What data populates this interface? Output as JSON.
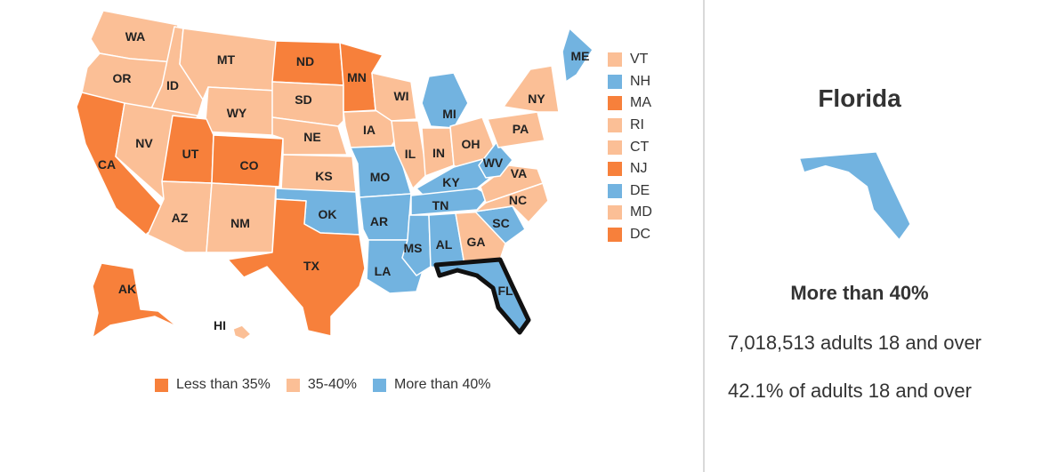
{
  "colors": {
    "less_than_35": "#f7803b",
    "range_35_40": "#fbbf96",
    "more_than_40": "#72b3e0"
  },
  "map": {
    "states": [
      {
        "abbr": "WA",
        "category": "range_35_40"
      },
      {
        "abbr": "OR",
        "category": "range_35_40"
      },
      {
        "abbr": "CA",
        "category": "less_than_35"
      },
      {
        "abbr": "ID",
        "category": "range_35_40"
      },
      {
        "abbr": "NV",
        "category": "range_35_40"
      },
      {
        "abbr": "MT",
        "category": "range_35_40"
      },
      {
        "abbr": "WY",
        "category": "range_35_40"
      },
      {
        "abbr": "UT",
        "category": "less_than_35"
      },
      {
        "abbr": "CO",
        "category": "less_than_35"
      },
      {
        "abbr": "AZ",
        "category": "range_35_40"
      },
      {
        "abbr": "NM",
        "category": "range_35_40"
      },
      {
        "abbr": "ND",
        "category": "less_than_35"
      },
      {
        "abbr": "SD",
        "category": "range_35_40"
      },
      {
        "abbr": "NE",
        "category": "range_35_40"
      },
      {
        "abbr": "KS",
        "category": "range_35_40"
      },
      {
        "abbr": "OK",
        "category": "more_than_40"
      },
      {
        "abbr": "TX",
        "category": "less_than_35"
      },
      {
        "abbr": "MN",
        "category": "less_than_35"
      },
      {
        "abbr": "IA",
        "category": "range_35_40"
      },
      {
        "abbr": "MO",
        "category": "more_than_40"
      },
      {
        "abbr": "AR",
        "category": "more_than_40"
      },
      {
        "abbr": "LA",
        "category": "more_than_40"
      },
      {
        "abbr": "WI",
        "category": "range_35_40"
      },
      {
        "abbr": "IL",
        "category": "range_35_40"
      },
      {
        "abbr": "MI",
        "category": "more_than_40"
      },
      {
        "abbr": "IN",
        "category": "range_35_40"
      },
      {
        "abbr": "OH",
        "category": "range_35_40"
      },
      {
        "abbr": "KY",
        "category": "more_than_40"
      },
      {
        "abbr": "TN",
        "category": "more_than_40"
      },
      {
        "abbr": "MS",
        "category": "more_than_40"
      },
      {
        "abbr": "AL",
        "category": "more_than_40"
      },
      {
        "abbr": "GA",
        "category": "range_35_40"
      },
      {
        "abbr": "FL",
        "category": "more_than_40"
      },
      {
        "abbr": "SC",
        "category": "more_than_40"
      },
      {
        "abbr": "NC",
        "category": "range_35_40"
      },
      {
        "abbr": "VA",
        "category": "range_35_40"
      },
      {
        "abbr": "WV",
        "category": "more_than_40"
      },
      {
        "abbr": "PA",
        "category": "range_35_40"
      },
      {
        "abbr": "NY",
        "category": "range_35_40"
      },
      {
        "abbr": "ME",
        "category": "more_than_40"
      },
      {
        "abbr": "AK",
        "category": "less_than_35"
      },
      {
        "abbr": "HI",
        "category": "range_35_40"
      }
    ],
    "selected_state": "FL"
  },
  "small_states": [
    {
      "abbr": "VT",
      "category": "range_35_40"
    },
    {
      "abbr": "NH",
      "category": "more_than_40"
    },
    {
      "abbr": "MA",
      "category": "less_than_35"
    },
    {
      "abbr": "RI",
      "category": "range_35_40"
    },
    {
      "abbr": "CT",
      "category": "range_35_40"
    },
    {
      "abbr": "NJ",
      "category": "less_than_35"
    },
    {
      "abbr": "DE",
      "category": "more_than_40"
    },
    {
      "abbr": "MD",
      "category": "range_35_40"
    },
    {
      "abbr": "DC",
      "category": "less_than_35"
    }
  ],
  "legend": [
    {
      "label": "Less than 35%",
      "category": "less_than_35"
    },
    {
      "label": "35-40%",
      "category": "range_35_40"
    },
    {
      "label": "More than 40%",
      "category": "more_than_40"
    }
  ],
  "detail": {
    "title": "Florida",
    "category_label": "More than 40%",
    "category": "more_than_40",
    "stat_count": "7,018,513 adults 18 and over",
    "stat_percent": "42.1% of adults 18 and over"
  }
}
